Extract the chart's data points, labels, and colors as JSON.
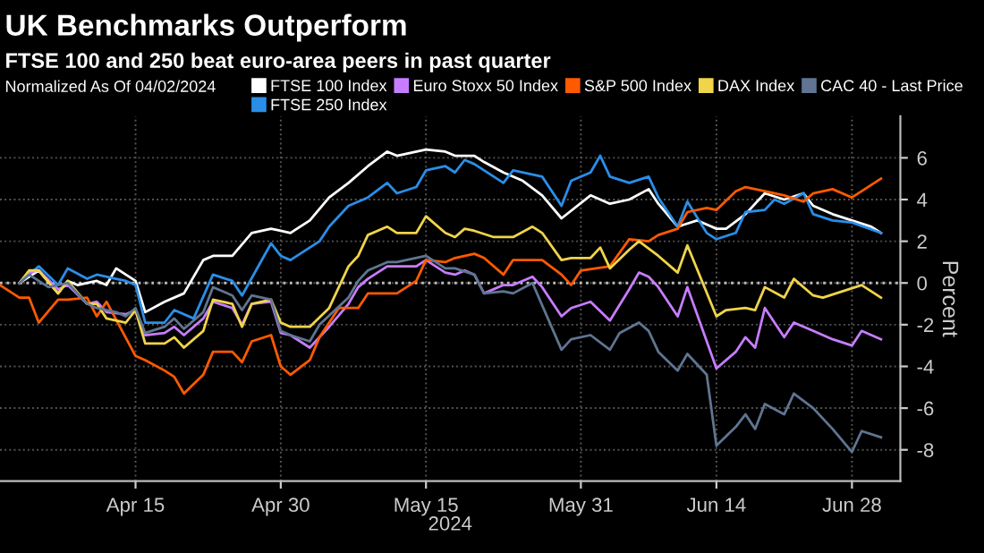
{
  "chart_data": {
    "type": "line",
    "title": "UK Benchmarks Outperform",
    "subtitle": "FTSE 100 and 250 beat euro-area peers in past quarter",
    "legend_title": "Normalized As Of 04/02/2024",
    "xlabel": "2024",
    "ylabel": "Percent",
    "series": [
      {
        "name": "FTSE 100 Index",
        "color": "#ffffff",
        "x": [
          "2024-04-03",
          "2024-04-05",
          "2024-04-07",
          "2024-04-08",
          "2024-04-09",
          "2024-04-11",
          "2024-04-12",
          "2024-04-13",
          "2024-04-15",
          "2024-04-16",
          "2024-04-18",
          "2024-04-20",
          "2024-04-22",
          "2024-04-23",
          "2024-04-25",
          "2024-04-27",
          "2024-04-29",
          "2024-04-30",
          "2024-05-01",
          "2024-05-03",
          "2024-05-05",
          "2024-05-07",
          "2024-05-09",
          "2024-05-11",
          "2024-05-12",
          "2024-05-15",
          "2024-05-17",
          "2024-05-18",
          "2024-05-20",
          "2024-05-21",
          "2024-05-23",
          "2024-05-25",
          "2024-05-27",
          "2024-05-29",
          "2024-06-01",
          "2024-06-03",
          "2024-06-05",
          "2024-06-07",
          "2024-06-08",
          "2024-06-10",
          "2024-06-12",
          "2024-06-14",
          "2024-06-15",
          "2024-06-17",
          "2024-06-19",
          "2024-06-21",
          "2024-06-23",
          "2024-06-24",
          "2024-06-26",
          "2024-06-28",
          "2024-06-30",
          "2024-07-01"
        ],
        "values": [
          0.0,
          0.6,
          -0.5,
          0.1,
          -0.1,
          0.1,
          -0.1,
          0.7,
          0.1,
          -1.4,
          -0.9,
          -0.5,
          1.1,
          1.3,
          1.3,
          2.4,
          2.6,
          2.5,
          2.4,
          3.0,
          4.1,
          4.8,
          5.6,
          6.3,
          6.1,
          6.4,
          6.3,
          6.1,
          6.1,
          5.8,
          5.3,
          4.9,
          4.2,
          3.1,
          4.2,
          3.8,
          4.0,
          4.5,
          3.8,
          2.7,
          3.0,
          2.6,
          2.6,
          3.3,
          4.3,
          4.0,
          4.3,
          3.7,
          3.3,
          3.0,
          2.7,
          2.4
        ]
      },
      {
        "name": "FTSE 250 Index",
        "color": "#2a8ee8",
        "x": [
          "2024-04-03",
          "2024-04-05",
          "2024-04-07",
          "2024-04-08",
          "2024-04-10",
          "2024-04-11",
          "2024-04-13",
          "2024-04-14",
          "2024-04-15",
          "2024-04-16",
          "2024-04-18",
          "2024-04-19",
          "2024-04-21",
          "2024-04-23",
          "2024-04-25",
          "2024-04-26",
          "2024-04-29",
          "2024-04-30",
          "2024-05-01",
          "2024-05-04",
          "2024-05-05",
          "2024-05-07",
          "2024-05-09",
          "2024-05-11",
          "2024-05-12",
          "2024-05-14",
          "2024-05-15",
          "2024-05-17",
          "2024-05-18",
          "2024-05-19",
          "2024-05-20",
          "2024-05-21",
          "2024-05-23",
          "2024-05-24",
          "2024-05-27",
          "2024-05-29",
          "2024-05-30",
          "2024-06-01",
          "2024-06-02",
          "2024-06-03",
          "2024-06-05",
          "2024-06-07",
          "2024-06-08",
          "2024-06-10",
          "2024-06-11",
          "2024-06-13",
          "2024-06-14",
          "2024-06-16",
          "2024-06-17",
          "2024-06-19",
          "2024-06-20",
          "2024-06-21",
          "2024-06-23",
          "2024-06-24",
          "2024-06-26",
          "2024-06-28",
          "2024-07-01"
        ],
        "values": [
          0.0,
          0.8,
          -0.1,
          0.7,
          0.2,
          0.4,
          0.2,
          0.1,
          -0.1,
          -1.9,
          -1.9,
          -1.3,
          -1.7,
          0.4,
          0.1,
          -0.6,
          1.9,
          1.3,
          1.1,
          2.0,
          2.7,
          3.7,
          4.1,
          4.8,
          4.3,
          4.6,
          5.4,
          5.6,
          5.3,
          5.9,
          5.7,
          5.4,
          4.8,
          5.4,
          5.1,
          3.7,
          4.9,
          5.3,
          6.1,
          5.1,
          4.8,
          5.1,
          4.1,
          2.7,
          3.9,
          2.4,
          2.1,
          2.4,
          3.4,
          3.5,
          4.0,
          3.8,
          4.3,
          3.3,
          3.0,
          2.9,
          2.4
        ]
      },
      {
        "name": "Euro Stoxx 50 Index",
        "color": "#c77dff",
        "x": [
          "2024-04-03",
          "2024-04-04",
          "2024-04-05",
          "2024-04-07",
          "2024-04-08",
          "2024-04-10",
          "2024-04-11",
          "2024-04-12",
          "2024-04-14",
          "2024-04-15",
          "2024-04-16",
          "2024-04-18",
          "2024-04-19",
          "2024-04-20",
          "2024-04-22",
          "2024-04-23",
          "2024-04-25",
          "2024-04-26",
          "2024-04-27",
          "2024-04-29",
          "2024-04-30",
          "2024-05-01",
          "2024-05-03",
          "2024-05-05",
          "2024-05-07",
          "2024-05-08",
          "2024-05-09",
          "2024-05-11",
          "2024-05-12",
          "2024-05-14",
          "2024-05-15",
          "2024-05-17",
          "2024-05-18",
          "2024-05-19",
          "2024-05-20",
          "2024-05-21",
          "2024-05-23",
          "2024-05-24",
          "2024-05-26",
          "2024-05-27",
          "2024-05-29",
          "2024-05-30",
          "2024-06-01",
          "2024-06-03",
          "2024-06-05",
          "2024-06-06",
          "2024-06-07",
          "2024-06-08",
          "2024-06-10",
          "2024-06-11",
          "2024-06-14",
          "2024-06-16",
          "2024-06-17",
          "2024-06-18",
          "2024-06-19",
          "2024-06-21",
          "2024-06-22",
          "2024-06-24",
          "2024-06-26",
          "2024-06-28",
          "2024-06-29",
          "2024-07-01"
        ],
        "values": [
          0.0,
          0.5,
          0.6,
          -0.3,
          -0.1,
          -1.0,
          -0.9,
          -1.4,
          -1.5,
          -1.3,
          -2.5,
          -2.4,
          -2.1,
          -2.5,
          -1.7,
          -0.9,
          -1.2,
          -2.0,
          -1.0,
          -0.9,
          -2.4,
          -2.5,
          -3.1,
          -2.1,
          -1.0,
          -0.2,
          0.2,
          0.8,
          0.8,
          0.8,
          1.1,
          0.5,
          0.4,
          0.6,
          0.4,
          -0.5,
          -0.1,
          -0.1,
          0.3,
          -0.2,
          -1.6,
          -1.2,
          -0.9,
          -1.8,
          -0.3,
          0.5,
          0.3,
          -0.2,
          -1.6,
          -0.2,
          -4.1,
          -3.3,
          -2.6,
          -3.1,
          -1.2,
          -2.6,
          -1.9,
          -2.3,
          -2.7,
          -3.0,
          -2.3,
          -2.7
        ]
      },
      {
        "name": "S&P 500 Index",
        "color": "#ff5a00",
        "x": [
          "2024-04-01",
          "2024-04-03",
          "2024-04-04",
          "2024-04-05",
          "2024-04-07",
          "2024-04-08",
          "2024-04-10",
          "2024-04-11",
          "2024-04-12",
          "2024-04-15",
          "2024-04-16",
          "2024-04-18",
          "2024-04-19",
          "2024-04-20",
          "2024-04-22",
          "2024-04-23",
          "2024-04-25",
          "2024-04-26",
          "2024-04-27",
          "2024-04-29",
          "2024-04-30",
          "2024-05-01",
          "2024-05-03",
          "2024-05-04",
          "2024-05-06",
          "2024-05-08",
          "2024-05-09",
          "2024-05-12",
          "2024-05-14",
          "2024-05-15",
          "2024-05-17",
          "2024-05-18",
          "2024-05-20",
          "2024-05-21",
          "2024-05-23",
          "2024-05-24",
          "2024-05-27",
          "2024-05-29",
          "2024-05-30",
          "2024-05-31",
          "2024-06-03",
          "2024-06-05",
          "2024-06-07",
          "2024-06-08",
          "2024-06-10",
          "2024-06-11",
          "2024-06-13",
          "2024-06-14",
          "2024-06-16",
          "2024-06-17",
          "2024-06-19",
          "2024-06-21",
          "2024-06-23",
          "2024-06-24",
          "2024-06-26",
          "2024-06-28",
          "2024-06-29",
          "2024-07-01"
        ],
        "values": [
          -0.1,
          -0.7,
          -0.7,
          -1.9,
          -0.8,
          -0.8,
          -0.7,
          -1.6,
          -0.9,
          -3.5,
          -3.7,
          -4.2,
          -4.5,
          -5.3,
          -4.4,
          -3.3,
          -3.3,
          -3.8,
          -2.8,
          -2.5,
          -4.0,
          -4.4,
          -3.7,
          -2.6,
          -1.2,
          -1.2,
          -0.5,
          -0.5,
          0.1,
          1.1,
          1.0,
          1.2,
          1.4,
          1.2,
          0.4,
          1.1,
          1.1,
          0.4,
          -0.1,
          0.6,
          0.8,
          2.1,
          2.0,
          2.3,
          2.6,
          3.4,
          3.6,
          3.5,
          4.4,
          4.6,
          4.4,
          4.2,
          3.9,
          4.3,
          4.5,
          4.1,
          4.4,
          5.0
        ]
      },
      {
        "name": "DAX Index",
        "color": "#f0d44a",
        "x": [
          "2024-04-03",
          "2024-04-04",
          "2024-04-05",
          "2024-04-07",
          "2024-04-08",
          "2024-04-10",
          "2024-04-11",
          "2024-04-12",
          "2024-04-14",
          "2024-04-15",
          "2024-04-16",
          "2024-04-18",
          "2024-04-19",
          "2024-04-20",
          "2024-04-22",
          "2024-04-23",
          "2024-04-25",
          "2024-04-26",
          "2024-04-27",
          "2024-04-29",
          "2024-04-30",
          "2024-05-01",
          "2024-05-03",
          "2024-05-05",
          "2024-05-07",
          "2024-05-08",
          "2024-05-09",
          "2024-05-11",
          "2024-05-12",
          "2024-05-14",
          "2024-05-15",
          "2024-05-17",
          "2024-05-18",
          "2024-05-19",
          "2024-05-20",
          "2024-05-22",
          "2024-05-24",
          "2024-05-26",
          "2024-05-27",
          "2024-05-29",
          "2024-05-30",
          "2024-06-01",
          "2024-06-02",
          "2024-06-03",
          "2024-06-05",
          "2024-06-06",
          "2024-06-08",
          "2024-06-10",
          "2024-06-11",
          "2024-06-14",
          "2024-06-15",
          "2024-06-17",
          "2024-06-18",
          "2024-06-19",
          "2024-06-21",
          "2024-06-22",
          "2024-06-24",
          "2024-06-25",
          "2024-06-27",
          "2024-06-29",
          "2024-07-01"
        ],
        "values": [
          0.0,
          0.6,
          0.6,
          -0.5,
          0.1,
          -1.0,
          -1.0,
          -1.7,
          -1.9,
          -1.3,
          -2.9,
          -2.9,
          -2.6,
          -3.1,
          -2.3,
          -0.8,
          -1.0,
          -2.1,
          -1.0,
          -0.8,
          -1.9,
          -2.1,
          -2.1,
          -1.2,
          0.8,
          1.3,
          2.3,
          2.7,
          2.4,
          2.4,
          3.2,
          2.4,
          2.2,
          2.6,
          2.5,
          2.2,
          2.2,
          2.7,
          2.4,
          1.1,
          1.2,
          1.2,
          1.7,
          0.7,
          1.6,
          2.0,
          1.3,
          0.5,
          1.8,
          -1.6,
          -1.3,
          -1.2,
          -1.3,
          -0.2,
          -0.7,
          0.2,
          -0.6,
          -0.7,
          -0.4,
          -0.1,
          -0.7
        ]
      },
      {
        "name": "CAC 40 - Last Price",
        "color": "#5f7591",
        "x": [
          "2024-04-03",
          "2024-04-04",
          "2024-04-06",
          "2024-04-08",
          "2024-04-10",
          "2024-04-11",
          "2024-04-13",
          "2024-04-14",
          "2024-04-15",
          "2024-04-16",
          "2024-04-18",
          "2024-04-19",
          "2024-04-20",
          "2024-04-22",
          "2024-04-23",
          "2024-04-25",
          "2024-04-26",
          "2024-04-27",
          "2024-04-29",
          "2024-04-30",
          "2024-05-01",
          "2024-05-03",
          "2024-05-04",
          "2024-05-07",
          "2024-05-08",
          "2024-05-09",
          "2024-05-11",
          "2024-05-12",
          "2024-05-15",
          "2024-05-17",
          "2024-05-18",
          "2024-05-20",
          "2024-05-21",
          "2024-05-23",
          "2024-05-24",
          "2024-05-26",
          "2024-05-29",
          "2024-05-30",
          "2024-06-01",
          "2024-06-03",
          "2024-06-04",
          "2024-06-06",
          "2024-06-07",
          "2024-06-08",
          "2024-06-10",
          "2024-06-11",
          "2024-06-13",
          "2024-06-14",
          "2024-06-16",
          "2024-06-17",
          "2024-06-18",
          "2024-06-19",
          "2024-06-21",
          "2024-06-22",
          "2024-06-24",
          "2024-06-26",
          "2024-06-28",
          "2024-06-29",
          "2024-07-01"
        ],
        "values": [
          0.0,
          0.4,
          -0.2,
          0.0,
          -1.0,
          -1.2,
          -1.4,
          -1.6,
          -1.2,
          -2.4,
          -2.1,
          -1.7,
          -2.2,
          -1.4,
          -0.2,
          -0.6,
          -1.3,
          -0.6,
          -0.8,
          -2.3,
          -2.5,
          -2.8,
          -2.0,
          -0.7,
          0.1,
          0.6,
          1.0,
          1.0,
          1.3,
          0.7,
          0.7,
          0.4,
          -0.5,
          -0.4,
          -0.5,
          0.0,
          -3.2,
          -2.7,
          -2.5,
          -3.2,
          -2.4,
          -1.9,
          -2.3,
          -3.3,
          -4.2,
          -3.4,
          -4.4,
          -7.8,
          -6.9,
          -6.3,
          -7.0,
          -5.8,
          -6.3,
          -5.3,
          -6.0,
          -7.0,
          -8.1,
          -7.1,
          -7.4
        ]
      }
    ],
    "xlim": [
      "2024-04-01",
      "2024-07-03"
    ],
    "xticks": [
      {
        "value": "2024-04-15",
        "label": "Apr 15"
      },
      {
        "value": "2024-04-30",
        "label": "Apr 30"
      },
      {
        "value": "2024-05-15",
        "label": "May 15"
      },
      {
        "value": "2024-05-31",
        "label": "May 31"
      },
      {
        "value": "2024-06-14",
        "label": "Jun 14"
      },
      {
        "value": "2024-06-28",
        "label": "Jun 28"
      }
    ],
    "ylim": [
      -9.5,
      8
    ],
    "yticks": [
      -8,
      -6,
      -4,
      -2,
      0,
      2,
      4,
      6
    ],
    "ref_lines": [
      {
        "axis": "y",
        "value": 0,
        "color": "#bbbbbb",
        "line_style": "dotted"
      }
    ],
    "grid": true,
    "legend": "top",
    "line_style": "solid",
    "marker": "none"
  }
}
